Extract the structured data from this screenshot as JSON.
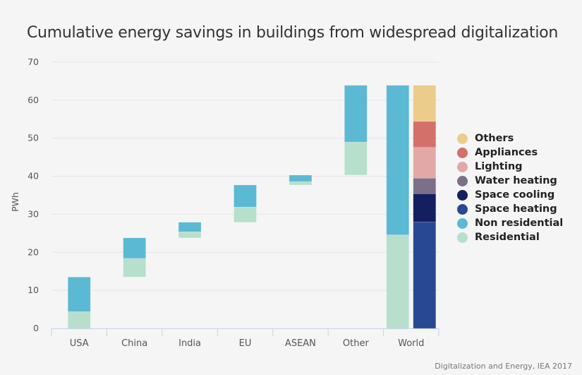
{
  "chart_data": {
    "type": "bar",
    "subtype": "waterfall-stacked",
    "title": "Cumulative energy savings in buildings from widespread digitalization",
    "ylabel": "PWh",
    "xlabel": "",
    "ylim": [
      0,
      70
    ],
    "yticks": [
      0,
      10,
      20,
      30,
      40,
      50,
      60,
      70
    ],
    "grid": true,
    "legend_position": "right",
    "categories": [
      "USA",
      "China",
      "India",
      "EU",
      "ASEAN",
      "Other",
      "World"
    ],
    "regional_bars": [
      {
        "category": "USA",
        "base": 0,
        "Residential": 4.4,
        "Non residential": 9.1
      },
      {
        "category": "China",
        "base": 13.5,
        "Residential": 4.9,
        "Non residential": 5.4
      },
      {
        "category": "India",
        "base": 23.8,
        "Residential": 1.6,
        "Non residential": 2.5
      },
      {
        "category": "EU",
        "base": 27.9,
        "Residential": 4.0,
        "Non residential": 5.8
      },
      {
        "category": "ASEAN",
        "base": 37.7,
        "Residential": 0.9,
        "Non residential": 1.7
      },
      {
        "category": "Other",
        "base": 40.3,
        "Residential": 8.7,
        "Non residential": 14.9
      },
      {
        "category": "World",
        "base": 0,
        "Residential": 24.6,
        "Non residential": 39.3
      }
    ],
    "world_end_use": [
      {
        "name": "Space heating",
        "value": 28.0
      },
      {
        "name": "Space cooling",
        "value": 7.4
      },
      {
        "name": "Water heating",
        "value": 4.1
      },
      {
        "name": "Lighting",
        "value": 8.1
      },
      {
        "name": "Appliances",
        "value": 6.8
      },
      {
        "name": "Others",
        "value": 9.5
      }
    ],
    "legend": [
      {
        "name": "Others",
        "color": "#ebcc8b"
      },
      {
        "name": "Appliances",
        "color": "#d4706a"
      },
      {
        "name": "Lighting",
        "color": "#e2a8a6"
      },
      {
        "name": "Water heating",
        "color": "#7b7088"
      },
      {
        "name": "Space cooling",
        "color": "#131f5f"
      },
      {
        "name": "Space heating",
        "color": "#284894"
      },
      {
        "name": "Non residential",
        "color": "#5bb9d3"
      },
      {
        "name": "Residential",
        "color": "#b7dfcc"
      }
    ]
  },
  "source": "Digitalization and Energy, IEA 2017"
}
